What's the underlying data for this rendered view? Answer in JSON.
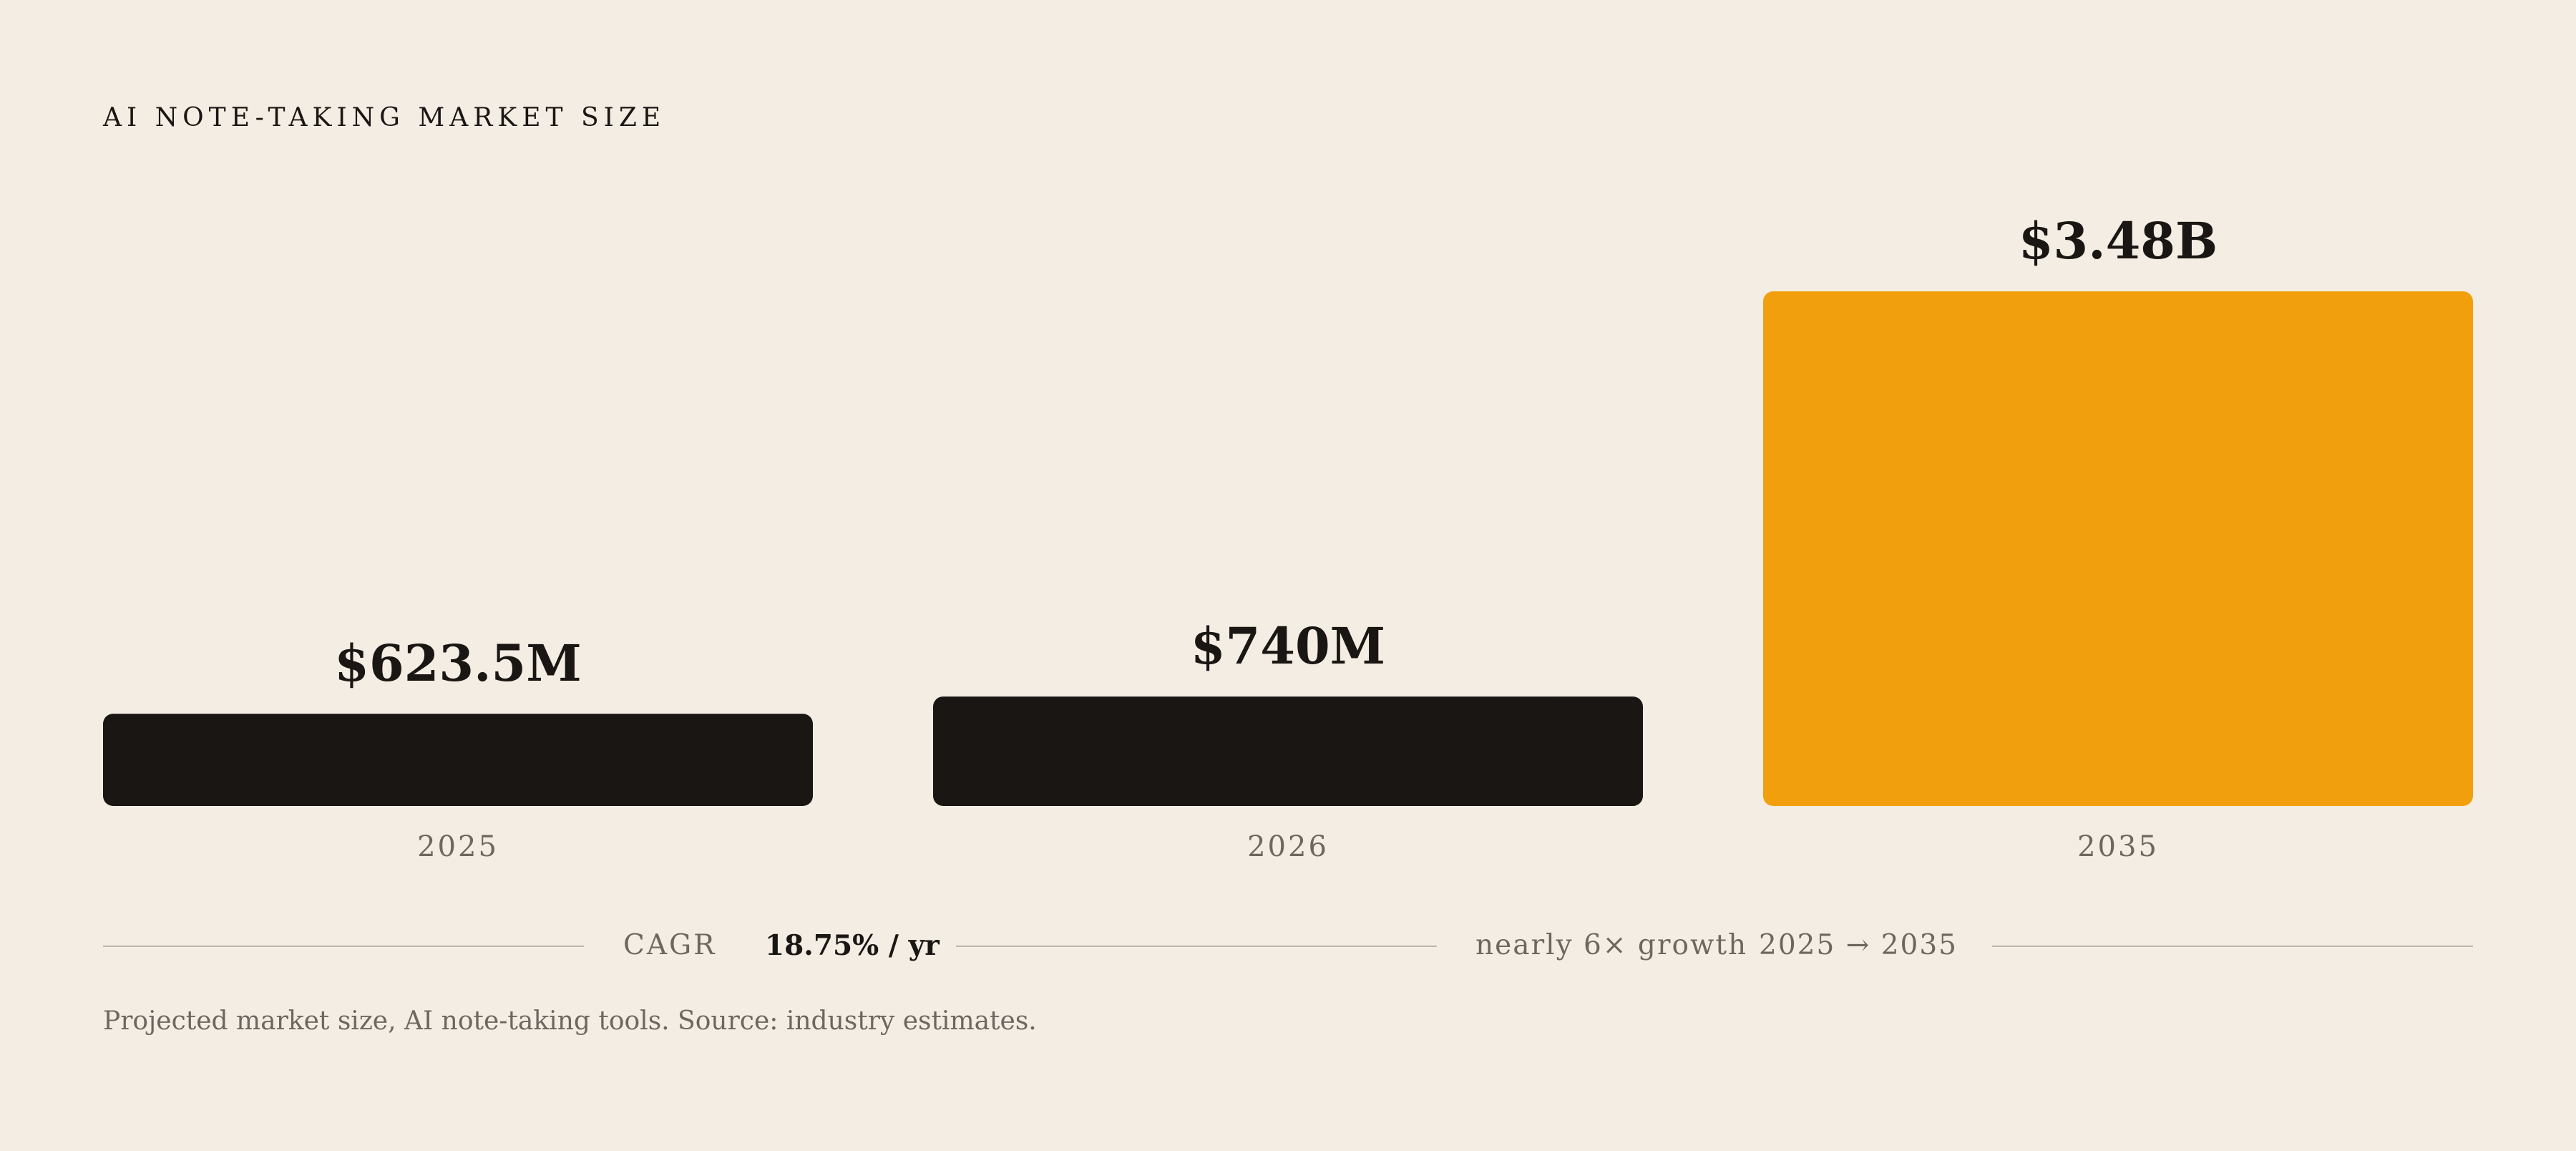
{
  "title": "AI NOTE-TAKING MARKET SIZE",
  "colors": {
    "background": "#F4EDE3",
    "bar_default": "#1A1613",
    "bar_highlight": "#F29F0E",
    "text_primary": "#1A1613",
    "text_muted": "#6E6760",
    "rule": "#BEB5AB"
  },
  "chart_data": {
    "type": "bar",
    "title": "AI NOTE-TAKING MARKET SIZE",
    "categories": [
      "2025",
      "2026",
      "2035"
    ],
    "values": [
      623.5,
      740,
      3480
    ],
    "unit": "USD millions",
    "data_labels": [
      "$623.5M",
      "$740M",
      "$3.48B"
    ],
    "highlight_index": 2,
    "ylim": [
      0,
      3480
    ],
    "grid": false,
    "legend": "none",
    "xlabel": "",
    "ylabel": ""
  },
  "summary": {
    "cagr_label": "CAGR",
    "cagr_value": "18.75% / yr",
    "growth_label": "nearly 6× growth",
    "growth_range": "2025 → 2035"
  },
  "caption": "Projected market size, AI note-taking tools. Source: industry estimates."
}
